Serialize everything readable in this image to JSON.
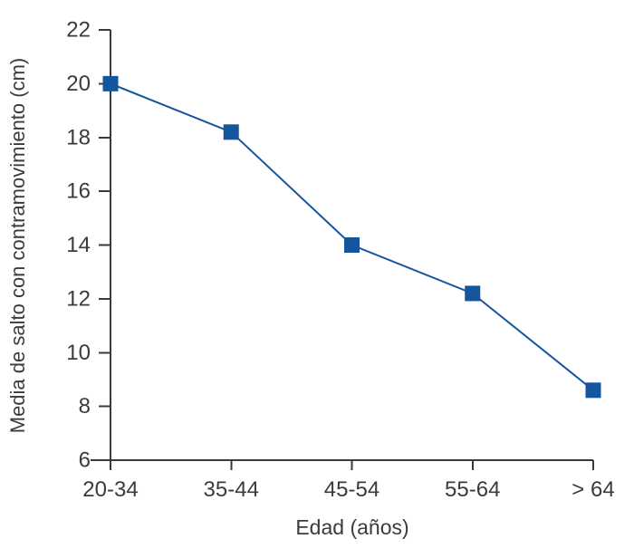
{
  "chart_data": {
    "type": "line",
    "categories": [
      "20-34",
      "35-44",
      "45-54",
      "55-64",
      "> 64"
    ],
    "values": [
      20,
      18.2,
      14,
      12.2,
      8.6
    ],
    "series_name": "Media de salto con contramovimiento",
    "title": "",
    "xlabel": "Edad (años)",
    "ylabel": "Media de salto con contramovimiento (cm)",
    "ylim": [
      6,
      22
    ],
    "yticks": [
      22,
      20,
      18,
      16,
      14,
      12,
      10,
      8,
      6
    ],
    "grid": false,
    "legend": false,
    "marker": "square",
    "colors": {
      "line": "#14569e",
      "marker": "#14569e",
      "axis": "#3a3a3a",
      "text": "#3b3b3b",
      "background": "#ffffff"
    }
  }
}
